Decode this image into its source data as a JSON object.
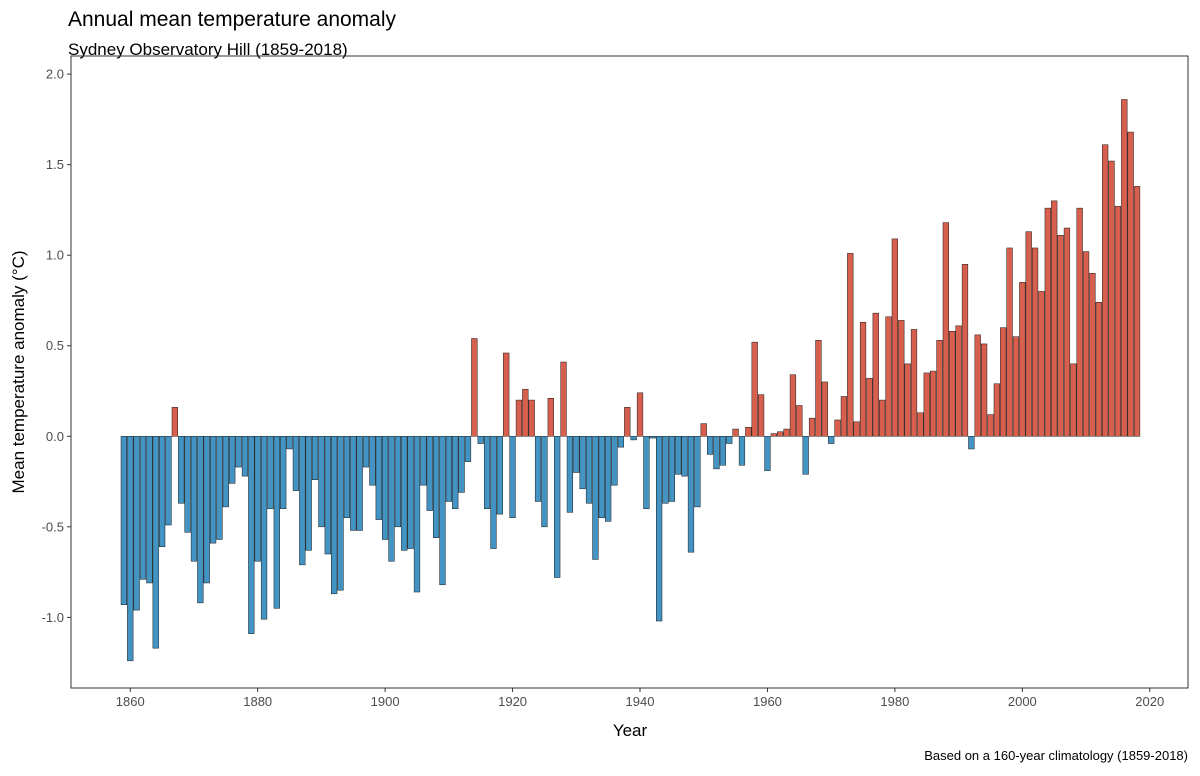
{
  "chart_data": {
    "type": "bar",
    "title": "Annual mean temperature anomaly",
    "subtitle": "Sydney Observatory Hill (1859-2018)",
    "xlabel": "Year",
    "ylabel": "Mean temperature anomaly (°C)",
    "caption": "Based on a 160-year climatology (1859-2018)",
    "x_start": 1859,
    "xlim": [
      1850.7,
      2026.0
    ],
    "ylim": [
      -1.39,
      2.1
    ],
    "x_ticks": [
      1860,
      1880,
      1900,
      1920,
      1940,
      1960,
      1980,
      2000,
      2020
    ],
    "y_ticks": [
      -1.0,
      -0.5,
      0.0,
      0.5,
      1.0,
      1.5,
      2.0
    ],
    "y_tick_labels": [
      "-1.0",
      "-0.5",
      "0.0",
      "0.5",
      "1.0",
      "1.5",
      "2.0"
    ],
    "grid": false,
    "colors": {
      "positive": "#d6604d",
      "negative": "#4393c3",
      "outline": "#1a1a1a"
    },
    "values": [
      -0.93,
      -1.24,
      -0.96,
      -0.79,
      -0.81,
      -1.17,
      -0.61,
      -0.49,
      0.16,
      -0.37,
      -0.53,
      -0.69,
      -0.92,
      -0.81,
      -0.59,
      -0.57,
      -0.39,
      -0.26,
      -0.17,
      -0.22,
      -1.09,
      -0.69,
      -1.01,
      -0.4,
      -0.95,
      -0.4,
      -0.07,
      -0.3,
      -0.71,
      -0.63,
      -0.24,
      -0.5,
      -0.65,
      -0.87,
      -0.85,
      -0.45,
      -0.52,
      -0.52,
      -0.17,
      -0.27,
      -0.46,
      -0.57,
      -0.69,
      -0.5,
      -0.63,
      -0.62,
      -0.86,
      -0.27,
      -0.41,
      -0.56,
      -0.82,
      -0.36,
      -0.4,
      -0.31,
      -0.14,
      0.54,
      -0.04,
      -0.4,
      -0.62,
      -0.43,
      0.46,
      -0.45,
      0.2,
      0.26,
      0.2,
      -0.36,
      -0.5,
      0.21,
      -0.78,
      0.41,
      -0.42,
      -0.2,
      -0.29,
      -0.37,
      -0.68,
      -0.45,
      -0.47,
      -0.27,
      -0.06,
      0.16,
      -0.02,
      0.24,
      -0.4,
      -0.01,
      -1.02,
      -0.37,
      -0.36,
      -0.21,
      -0.22,
      -0.64,
      -0.39,
      0.07,
      -0.1,
      -0.18,
      -0.16,
      -0.04,
      0.04,
      -0.16,
      0.05,
      0.52,
      0.23,
      -0.19,
      0.015,
      0.025,
      0.04,
      0.34,
      0.17,
      -0.21,
      0.1,
      0.53,
      0.3,
      -0.04,
      0.09,
      0.22,
      1.01,
      0.08,
      0.63,
      0.32,
      0.68,
      0.2,
      0.66,
      1.09,
      0.64,
      0.4,
      0.59,
      0.13,
      0.35,
      0.36,
      0.53,
      1.18,
      0.58,
      0.61,
      0.95,
      -0.07,
      0.56,
      0.51,
      0.12,
      0.29,
      0.6,
      1.04,
      0.55,
      0.85,
      1.13,
      1.04,
      0.8,
      1.26,
      1.3,
      1.11,
      1.15,
      0.4,
      1.26,
      1.02,
      0.9,
      0.74,
      1.61,
      1.52,
      1.27,
      1.86,
      1.68,
      1.38
    ]
  }
}
